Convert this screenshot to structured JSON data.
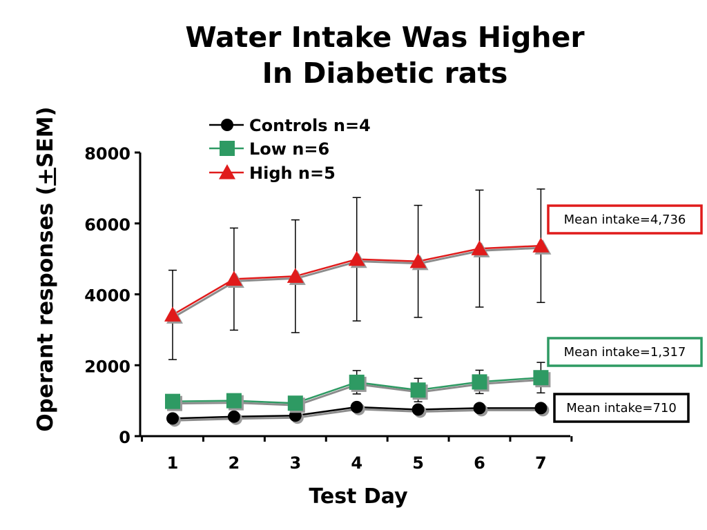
{
  "title_line1": "Water Intake Was Higher",
  "title_line2": "In Diabetic rats",
  "chart_data": {
    "type": "line",
    "title": "Water Intake Was Higher In Diabetic rats",
    "xlabel": "Test Day",
    "ylabel_parts": {
      "before": "Operant responses (",
      "pm": "+",
      "after": "SEM)"
    },
    "x": [
      1,
      2,
      3,
      4,
      5,
      6,
      7
    ],
    "xticks": [
      "1",
      "2",
      "3",
      "4",
      "5",
      "6",
      "7"
    ],
    "ylim": [
      0,
      8000
    ],
    "yticks": [
      "0",
      "2000",
      "4000",
      "6000",
      "8000"
    ],
    "grid": false,
    "legend_position": "top-left",
    "series": [
      {
        "name": "Controls n=4",
        "marker": "circle",
        "color": "#000000",
        "values": [
          500,
          550,
          580,
          820,
          750,
          790,
          790
        ],
        "err": [
          0,
          0,
          0,
          0,
          0,
          0,
          0
        ]
      },
      {
        "name": "Low n=6",
        "marker": "square",
        "color": "#2e9a63",
        "values": [
          980,
          1000,
          930,
          1520,
          1300,
          1530,
          1650
        ],
        "err": [
          0,
          0,
          0,
          330,
          330,
          330,
          430
        ]
      },
      {
        "name": "High n=5",
        "marker": "triangle",
        "color": "#e01b1b",
        "values": [
          3420,
          4430,
          4510,
          4990,
          4930,
          5290,
          5370
        ],
        "err": [
          1260,
          1440,
          1590,
          1740,
          1580,
          1650,
          1600
        ]
      }
    ],
    "annotations": [
      {
        "text": "Mean intake=4,736",
        "series": 2,
        "border_color": "#e01b1b"
      },
      {
        "text": "Mean intake=1,317",
        "series": 1,
        "border_color": "#2e9a63"
      },
      {
        "text": "Mean intake=710",
        "series": 0,
        "border_color": "#000000"
      }
    ]
  }
}
